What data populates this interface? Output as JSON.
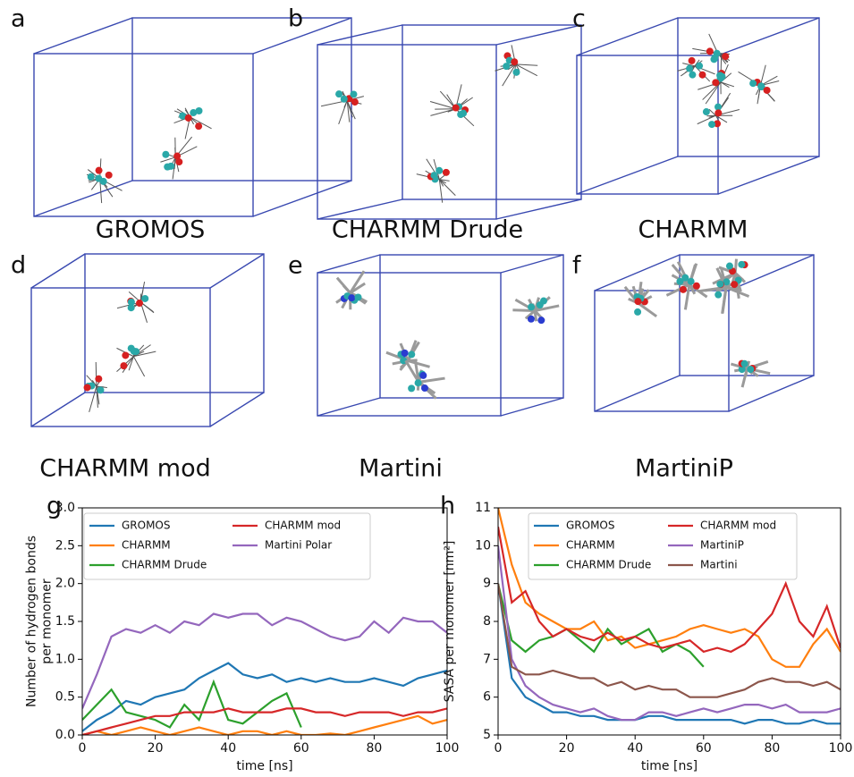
{
  "panels": [
    {
      "letter": "a",
      "caption": "GROMOS"
    },
    {
      "letter": "b",
      "caption": "CHARMM Drude"
    },
    {
      "letter": "c",
      "caption": "CHARMM"
    },
    {
      "letter": "d",
      "caption": "CHARMM mod"
    },
    {
      "letter": "e",
      "caption": "Martini"
    },
    {
      "letter": "f",
      "caption": "MartiniP"
    }
  ],
  "chart_data": [
    {
      "type": "line",
      "panel_label": "g",
      "xlabel": "time [ns]",
      "ylabel": [
        "Number of hydrogen bonds",
        "per monomer"
      ],
      "x": [
        0,
        4,
        8,
        12,
        16,
        20,
        24,
        28,
        32,
        36,
        40,
        44,
        48,
        52,
        56,
        60,
        64,
        68,
        72,
        76,
        80,
        84,
        88,
        92,
        96,
        100
      ],
      "xlim": [
        0,
        100
      ],
      "xticks": [
        0,
        20,
        40,
        60,
        80,
        100
      ],
      "ylim": [
        0,
        3
      ],
      "yticks": [
        {
          "value": 0,
          "label": "0.0"
        },
        {
          "value": 0.5,
          "label": "0.5"
        },
        {
          "value": 1,
          "label": "1.0"
        },
        {
          "value": 1.5,
          "label": "1.5"
        },
        {
          "value": 2,
          "label": "2.0"
        },
        {
          "value": 2.5,
          "label": "2.5"
        },
        {
          "value": 3,
          "label": "3.0"
        }
      ],
      "legend_columns": 2,
      "series": [
        {
          "name": "GROMOS",
          "color": "#1f77b4",
          "values": [
            0.05,
            0.2,
            0.3,
            0.45,
            0.4,
            0.5,
            0.55,
            0.6,
            0.75,
            0.85,
            0.95,
            0.8,
            0.75,
            0.8,
            0.7,
            0.75,
            0.7,
            0.75,
            0.7,
            0.7,
            0.75,
            0.7,
            0.65,
            0.75,
            0.8,
            0.85
          ]
        },
        {
          "name": "CHARMM",
          "color": "#ff7f0e",
          "values": [
            0,
            0.05,
            0,
            0.05,
            0.1,
            0.05,
            0,
            0.05,
            0.1,
            0.05,
            0,
            0.05,
            0.05,
            0,
            0.05,
            0,
            0,
            0.02,
            0,
            0.05,
            0.1,
            0.15,
            0.2,
            0.25,
            0.15,
            0.2
          ]
        },
        {
          "name": "CHARMM Drude",
          "color": "#2ca02c",
          "values": [
            0.2,
            0.4,
            0.6,
            0.3,
            0.25,
            0.2,
            0.1,
            0.4,
            0.2,
            0.7,
            0.2,
            0.15,
            0.3,
            0.45,
            0.55,
            0.1,
            null,
            null,
            null,
            null,
            null,
            null,
            null,
            null,
            null,
            null
          ]
        },
        {
          "name": "CHARMM mod",
          "color": "#d62728",
          "values": [
            0,
            0.05,
            0.1,
            0.15,
            0.2,
            0.25,
            0.25,
            0.3,
            0.3,
            0.3,
            0.35,
            0.3,
            0.3,
            0.3,
            0.35,
            0.35,
            0.3,
            0.3,
            0.25,
            0.3,
            0.3,
            0.3,
            0.25,
            0.3,
            0.3,
            0.35
          ]
        },
        {
          "name": "Martini Polar",
          "color": "#9467bd",
          "values": [
            0.35,
            0.8,
            1.3,
            1.4,
            1.35,
            1.45,
            1.35,
            1.5,
            1.45,
            1.6,
            1.55,
            1.6,
            1.6,
            1.45,
            1.55,
            1.5,
            1.4,
            1.3,
            1.25,
            1.3,
            1.5,
            1.35,
            1.55,
            1.5,
            1.5,
            1.35
          ]
        }
      ]
    },
    {
      "type": "line",
      "panel_label": "h",
      "xlabel": "time [ns]",
      "ylabel": [
        "SASA per monomer [nm²]"
      ],
      "x": [
        0,
        4,
        8,
        12,
        16,
        20,
        24,
        28,
        32,
        36,
        40,
        44,
        48,
        52,
        56,
        60,
        64,
        68,
        72,
        76,
        80,
        84,
        88,
        92,
        96,
        100
      ],
      "xlim": [
        0,
        100
      ],
      "xticks": [
        0,
        20,
        40,
        60,
        80,
        100
      ],
      "ylim": [
        5,
        11
      ],
      "yticks": [
        5,
        6,
        7,
        8,
        9,
        10,
        11
      ],
      "legend_columns": 2,
      "series": [
        {
          "name": "GROMOS",
          "color": "#1f77b4",
          "values": [
            9,
            6.5,
            6.0,
            5.8,
            5.6,
            5.6,
            5.5,
            5.5,
            5.4,
            5.4,
            5.4,
            5.5,
            5.5,
            5.4,
            5.4,
            5.4,
            5.4,
            5.4,
            5.3,
            5.4,
            5.4,
            5.3,
            5.3,
            5.4,
            5.3,
            5.3
          ]
        },
        {
          "name": "CHARMM",
          "color": "#ff7f0e",
          "values": [
            11,
            9.5,
            8.5,
            8.2,
            8,
            7.8,
            7.8,
            8,
            7.5,
            7.6,
            7.3,
            7.4,
            7.5,
            7.6,
            7.8,
            7.9,
            7.8,
            7.7,
            7.8,
            7.6,
            7.0,
            6.8,
            6.8,
            7.4,
            7.8,
            7.2
          ]
        },
        {
          "name": "CHARMM Drude",
          "color": "#2ca02c",
          "values": [
            9,
            7.5,
            7.2,
            7.5,
            7.6,
            7.8,
            7.5,
            7.2,
            7.8,
            7.4,
            7.6,
            7.8,
            7.2,
            7.4,
            7.2,
            6.8,
            null,
            null,
            null,
            null,
            null,
            null,
            null,
            null,
            null,
            null
          ]
        },
        {
          "name": "CHARMM mod",
          "color": "#d62728",
          "values": [
            10.5,
            8.5,
            8.8,
            8,
            7.6,
            7.8,
            7.6,
            7.5,
            7.7,
            7.5,
            7.6,
            7.4,
            7.3,
            7.4,
            7.5,
            7.2,
            7.3,
            7.2,
            7.4,
            7.8,
            8.2,
            9.0,
            8.0,
            7.6,
            8.4,
            7.3
          ]
        },
        {
          "name": "MartiniP",
          "color": "#9467bd",
          "values": [
            10,
            7,
            6.3,
            6,
            5.8,
            5.7,
            5.6,
            5.7,
            5.5,
            5.4,
            5.4,
            5.6,
            5.6,
            5.5,
            5.6,
            5.7,
            5.6,
            5.7,
            5.8,
            5.8,
            5.7,
            5.8,
            5.6,
            5.6,
            5.6,
            5.7
          ]
        },
        {
          "name": "Martini",
          "color": "#8c564b",
          "values": [
            9,
            6.8,
            6.6,
            6.6,
            6.7,
            6.6,
            6.5,
            6.5,
            6.3,
            6.4,
            6.2,
            6.3,
            6.2,
            6.2,
            6.0,
            6.0,
            6.0,
            6.1,
            6.2,
            6.4,
            6.5,
            6.4,
            6.4,
            6.3,
            6.4,
            6.2
          ]
        }
      ]
    }
  ]
}
